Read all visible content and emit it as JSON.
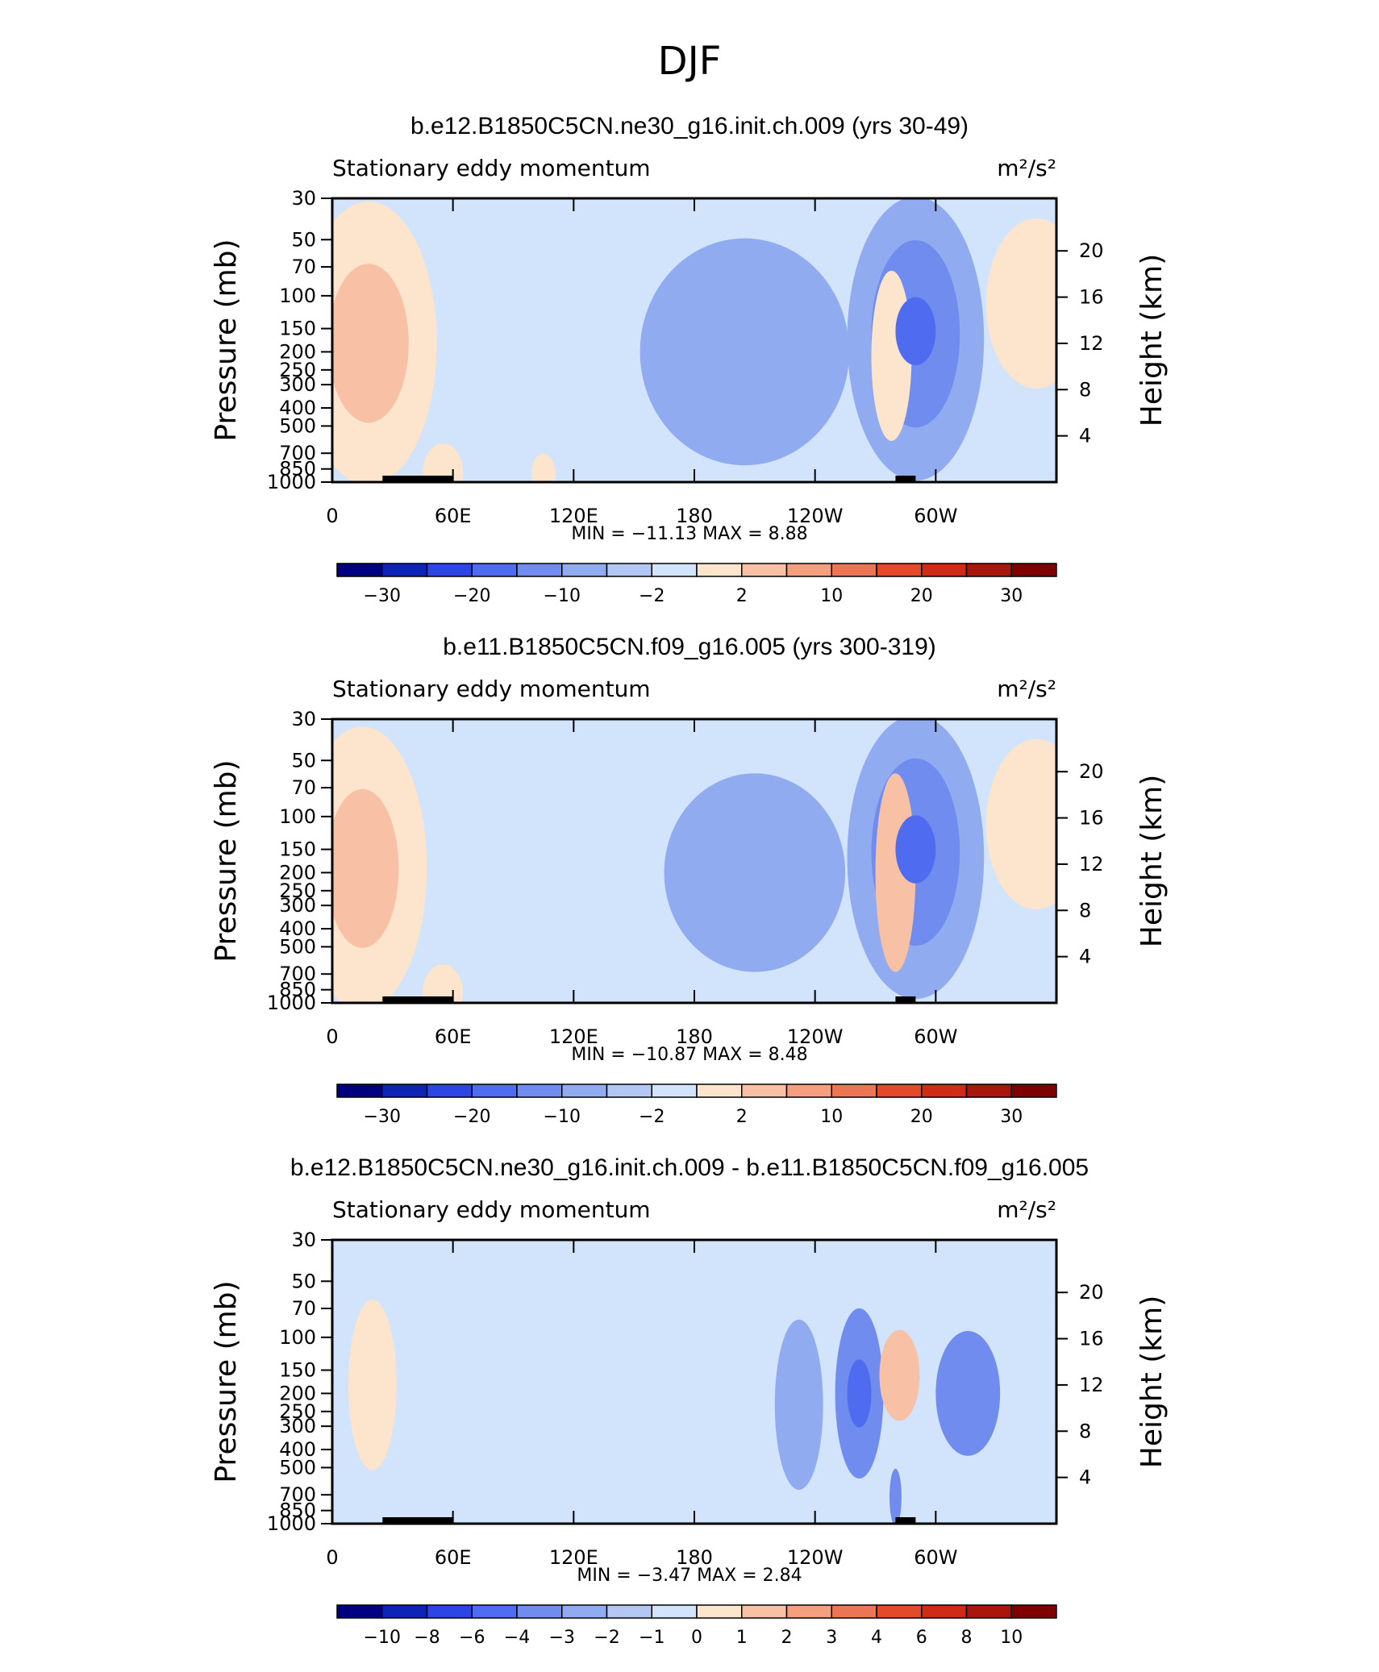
{
  "page": {
    "title": "DJF"
  },
  "colors": {
    "pos": [
      "#fde4cc",
      "#f8c0a4",
      "#f39f80",
      "#eb7656",
      "#e24a2a",
      "#cf2b16",
      "#a7170d",
      "#7f0000"
    ],
    "neg": [
      "#d1e4fb",
      "#b2c7f4",
      "#91abf0",
      "#6f8cee",
      "#4f6cf1",
      "#2c46e6",
      "#0d24b6",
      "#000080"
    ],
    "topography": "#000000"
  },
  "chart_data": [
    {
      "type": "heatmap",
      "title": "b.e12.B1850C5CN.ne30_g16.init.ch.009 (yrs 30-49)",
      "left_label": "Stationary eddy momentum",
      "units": "m²/s²",
      "ylabel": "Pressure (mb)",
      "y2label": "Height (km)",
      "x_ticks": [
        "0",
        "60E",
        "120E",
        "180",
        "120W",
        "60W"
      ],
      "y_ticks": [
        "30",
        "50",
        "70",
        "100",
        "150",
        "200",
        "250",
        "300",
        "400",
        "500",
        "700",
        "850",
        "1000"
      ],
      "y2_ticks": [
        "20",
        "16",
        "12",
        "8",
        "4"
      ],
      "xlim": [
        0,
        360
      ],
      "ylim": [
        1000,
        30
      ],
      "y_scale": "log",
      "stats": {
        "min_label": "MIN =",
        "min": "-11.13",
        "max_label": "MAX =",
        "max": "8.88"
      },
      "colorbar_labels": [
        "-30",
        "-20",
        "-10",
        "-2",
        "2",
        "10",
        "20",
        "30"
      ],
      "features": [
        {
          "lon": 18,
          "p": 180,
          "value": 9,
          "rx": 20,
          "ry": 0.28
        },
        {
          "lon": 18,
          "p": 180,
          "value": 4,
          "rx": 34,
          "ry": 0.5
        },
        {
          "lon": 290,
          "p": 155,
          "value": -11,
          "rx": 10,
          "ry": 0.12
        },
        {
          "lon": 290,
          "p": 160,
          "value": -6,
          "rx": 22,
          "ry": 0.33
        },
        {
          "lon": 290,
          "p": 170,
          "value": -2.5,
          "rx": 34,
          "ry": 0.5
        },
        {
          "lon": 205,
          "p": 200,
          "value": -3,
          "rx": 52,
          "ry": 0.4
        },
        {
          "lon": 278,
          "p": 210,
          "value": 4,
          "rx": 10,
          "ry": 0.3
        },
        {
          "lon": 350,
          "p": 110,
          "value": 3,
          "rx": 25,
          "ry": 0.3
        },
        {
          "lon": 130,
          "p": 350,
          "value": 1.5,
          "rx": 80,
          "ry": 0.6
        },
        {
          "lon": 55,
          "p": 880,
          "value": 3,
          "rx": 10,
          "ry": 0.1
        },
        {
          "lon": 105,
          "p": 900,
          "value": 2.5,
          "rx": 6,
          "ry": 0.07
        }
      ]
    },
    {
      "type": "heatmap",
      "title": "b.e11.B1850C5CN.f09_g16.005 (yrs 300-319)",
      "left_label": "Stationary eddy momentum",
      "units": "m²/s²",
      "ylabel": "Pressure (mb)",
      "y2label": "Height (km)",
      "x_ticks": [
        "0",
        "60E",
        "120E",
        "180",
        "120W",
        "60W"
      ],
      "y_ticks": [
        "30",
        "50",
        "70",
        "100",
        "150",
        "200",
        "250",
        "300",
        "400",
        "500",
        "700",
        "850",
        "1000"
      ],
      "y2_ticks": [
        "20",
        "16",
        "12",
        "8",
        "4"
      ],
      "xlim": [
        0,
        360
      ],
      "ylim": [
        1000,
        30
      ],
      "y_scale": "log",
      "stats": {
        "min_label": "MIN =",
        "min": "-10.87",
        "max_label": "MAX =",
        "max": "8.48"
      },
      "colorbar_labels": [
        "-30",
        "-20",
        "-10",
        "-2",
        "2",
        "10",
        "20",
        "30"
      ],
      "features": [
        {
          "lon": 15,
          "p": 190,
          "value": 8.5,
          "rx": 18,
          "ry": 0.28
        },
        {
          "lon": 15,
          "p": 190,
          "value": 4,
          "rx": 32,
          "ry": 0.5
        },
        {
          "lon": 290,
          "p": 150,
          "value": -10.5,
          "rx": 10,
          "ry": 0.12
        },
        {
          "lon": 290,
          "p": 155,
          "value": -6,
          "rx": 22,
          "ry": 0.33
        },
        {
          "lon": 290,
          "p": 165,
          "value": -2.5,
          "rx": 34,
          "ry": 0.5
        },
        {
          "lon": 210,
          "p": 200,
          "value": -3,
          "rx": 45,
          "ry": 0.35
        },
        {
          "lon": 280,
          "p": 200,
          "value": 6,
          "rx": 10,
          "ry": 0.35
        },
        {
          "lon": 350,
          "p": 110,
          "value": 3,
          "rx": 25,
          "ry": 0.3
        },
        {
          "lon": 130,
          "p": 300,
          "value": 1.5,
          "rx": 80,
          "ry": 0.6
        },
        {
          "lon": 55,
          "p": 880,
          "value": 3,
          "rx": 10,
          "ry": 0.1
        }
      ]
    },
    {
      "type": "heatmap",
      "title": "b.e12.B1850C5CN.ne30_g16.init.ch.009 - b.e11.B1850C5CN.f09_g16.005",
      "left_label": "Stationary eddy momentum",
      "units": "m²/s²",
      "ylabel": "Pressure (mb)",
      "y2label": "Height (km)",
      "x_ticks": [
        "0",
        "60E",
        "120E",
        "180",
        "120W",
        "60W"
      ],
      "y_ticks": [
        "30",
        "50",
        "70",
        "100",
        "150",
        "200",
        "250",
        "300",
        "400",
        "500",
        "700",
        "850",
        "1000"
      ],
      "y2_ticks": [
        "20",
        "16",
        "12",
        "8",
        "4"
      ],
      "xlim": [
        0,
        360
      ],
      "ylim": [
        1000,
        30
      ],
      "y_scale": "log",
      "stats": {
        "min_label": "MIN =",
        "min": "-3.47",
        "max_label": "MAX =",
        "max": "2.84"
      },
      "colorbar_labels": [
        "-10",
        "-8",
        "-6",
        "-4",
        "-3",
        "-2",
        "-1",
        "0",
        "1",
        "2",
        "3",
        "4",
        "6",
        "8",
        "10"
      ],
      "features": [
        {
          "lon": 262,
          "p": 200,
          "value": -3.4,
          "rx": 6,
          "ry": 0.12
        },
        {
          "lon": 262,
          "p": 200,
          "value": -2.2,
          "rx": 12,
          "ry": 0.3
        },
        {
          "lon": 316,
          "p": 200,
          "value": -2.6,
          "rx": 16,
          "ry": 0.22
        },
        {
          "lon": 232,
          "p": 230,
          "value": -1.8,
          "rx": 12,
          "ry": 0.3
        },
        {
          "lon": 282,
          "p": 160,
          "value": 2.0,
          "rx": 10,
          "ry": 0.16
        },
        {
          "lon": 20,
          "p": 180,
          "value": 1.7,
          "rx": 12,
          "ry": 0.3
        },
        {
          "lon": 280,
          "p": 720,
          "value": -2.2,
          "rx": 3,
          "ry": 0.1
        },
        {
          "lon": 150,
          "p": 180,
          "value": 0.6,
          "rx": 70,
          "ry": 0.6
        }
      ]
    }
  ]
}
